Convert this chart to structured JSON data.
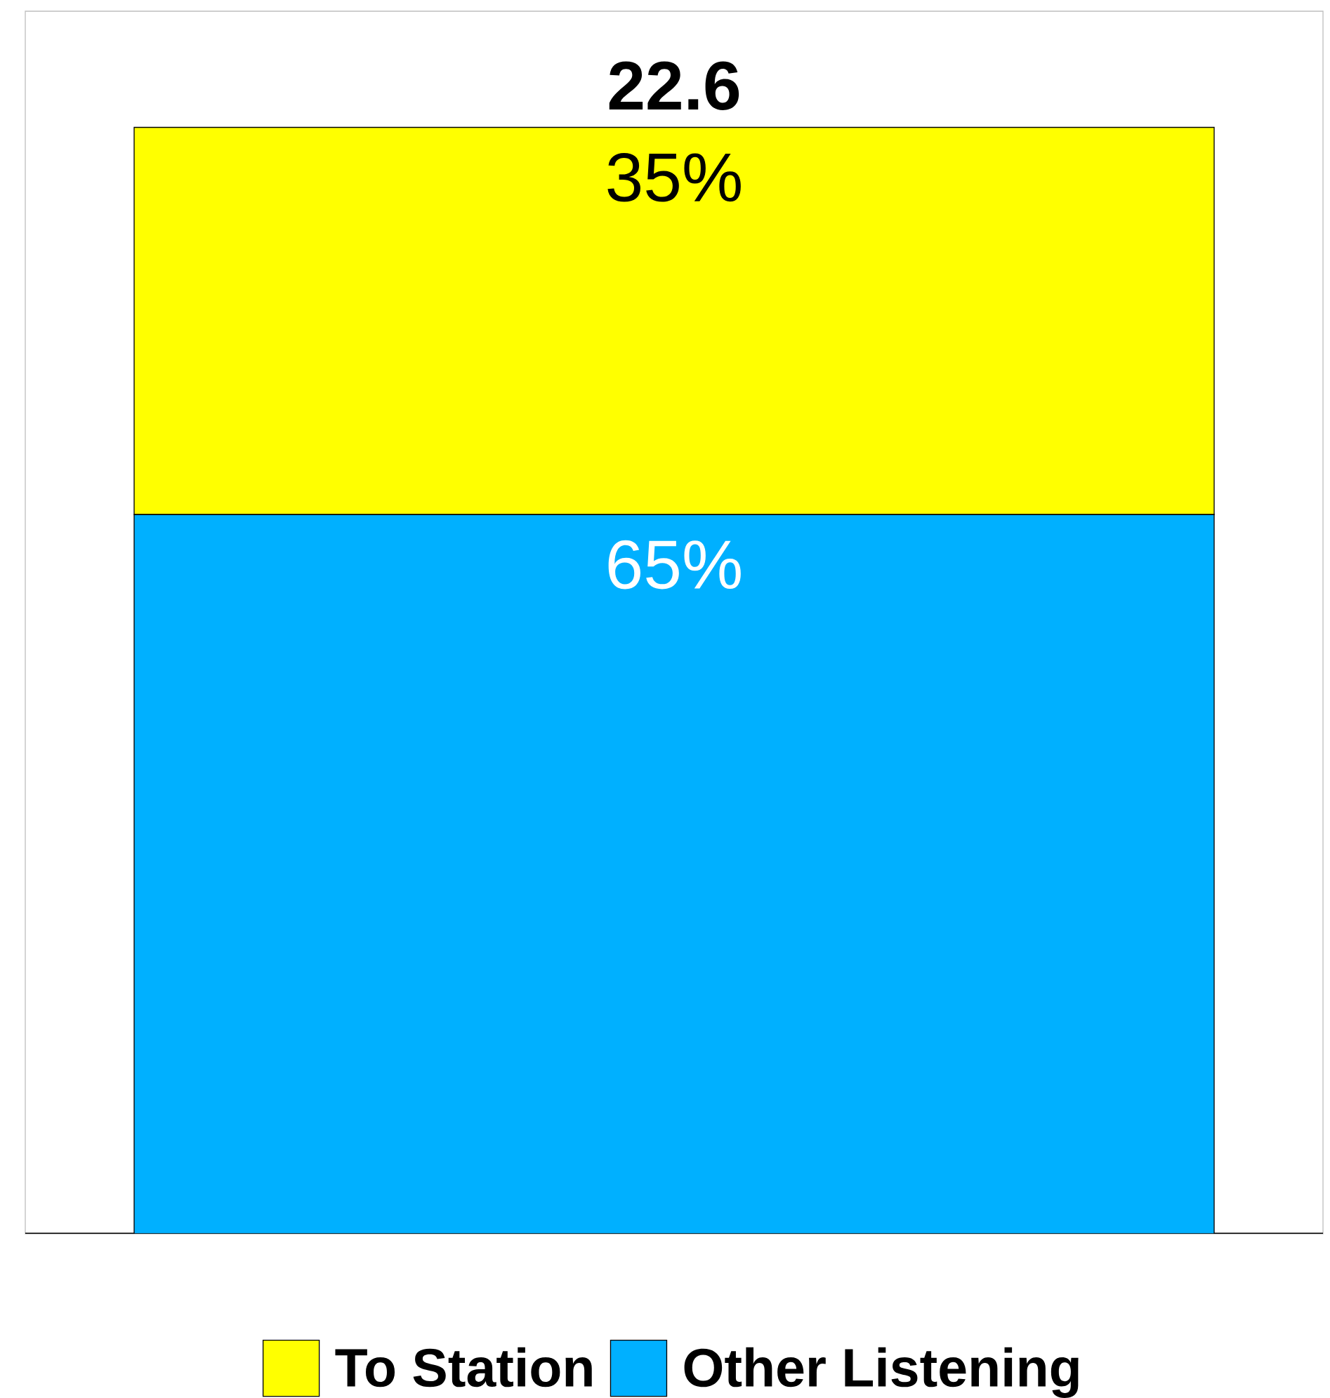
{
  "chart_data": {
    "type": "bar",
    "stacked": true,
    "categories": [
      null
    ],
    "annotations": [
      "22.6"
    ],
    "legend": "bottom",
    "series": [
      {
        "name": "Other Listening",
        "color": "#00b0ff",
        "values": [
          65
        ],
        "value_labels": [
          "65%"
        ]
      },
      {
        "name": "To Station",
        "color": "#ffff00",
        "values": [
          35
        ],
        "value_labels": [
          "35%"
        ]
      }
    ]
  }
}
